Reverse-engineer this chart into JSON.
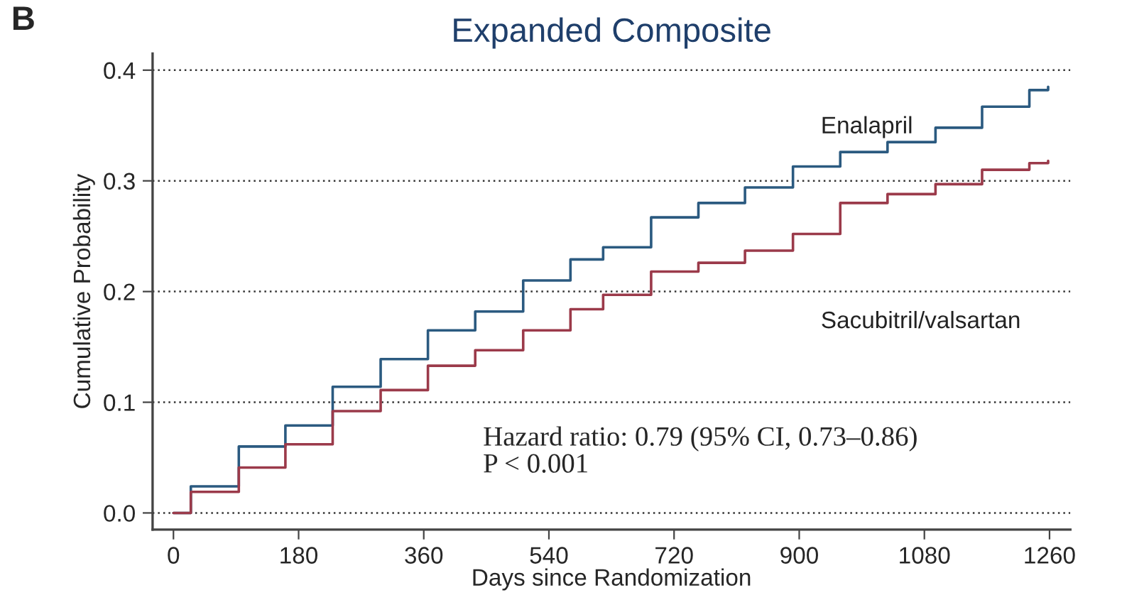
{
  "chart_data": {
    "type": "step",
    "title": "Expanded Composite",
    "xlabel": "Days since Randomization",
    "ylabel": "Cumulative Probability",
    "annotations": [
      "B",
      "Hazard ratio: 0.79 (95% CI, 0.73–0.86)\nP < 0.001"
    ],
    "series": [
      {
        "name": "Enalapril",
        "color": "#2b5a80",
        "x": [
          0,
          25,
          94,
          161,
          229,
          298,
          366,
          434,
          503,
          571,
          618,
          687,
          755,
          822,
          891,
          959,
          1027,
          1096,
          1163,
          1231,
          1258
        ],
        "values": [
          0,
          0.024,
          0.06,
          0.079,
          0.114,
          0.139,
          0.165,
          0.182,
          0.21,
          0.229,
          0.24,
          0.267,
          0.28,
          0.294,
          0.313,
          0.326,
          0.335,
          0.348,
          0.367,
          0.382,
          0.385
        ]
      },
      {
        "name": "Sacubitril/valsartan",
        "color": "#9b3a4a",
        "x": [
          0,
          25,
          94,
          161,
          229,
          298,
          366,
          434,
          503,
          571,
          618,
          687,
          755,
          822,
          891,
          959,
          1027,
          1096,
          1163,
          1231,
          1258
        ],
        "values": [
          0,
          0.019,
          0.041,
          0.062,
          0.092,
          0.111,
          0.133,
          0.147,
          0.165,
          0.184,
          0.197,
          0.218,
          0.226,
          0.237,
          0.252,
          0.28,
          0.288,
          0.297,
          0.31,
          0.316,
          0.318
        ]
      }
    ],
    "xlim": [
      -30,
      1290
    ],
    "xticks": [
      0,
      180,
      360,
      540,
      720,
      900,
      1080,
      1260
    ],
    "ylim": [
      -0.015,
      0.415
    ],
    "yticks": [
      {
        "value": 0,
        "label": "0.0"
      },
      {
        "value": 0.1,
        "label": "0.1"
      },
      {
        "value": 0.2,
        "label": "0.2"
      },
      {
        "value": 0.3,
        "label": "0.3"
      },
      {
        "value": 0.4,
        "label": "0.4"
      }
    ],
    "grid": "y",
    "line_style": "solid",
    "legend": false
  }
}
